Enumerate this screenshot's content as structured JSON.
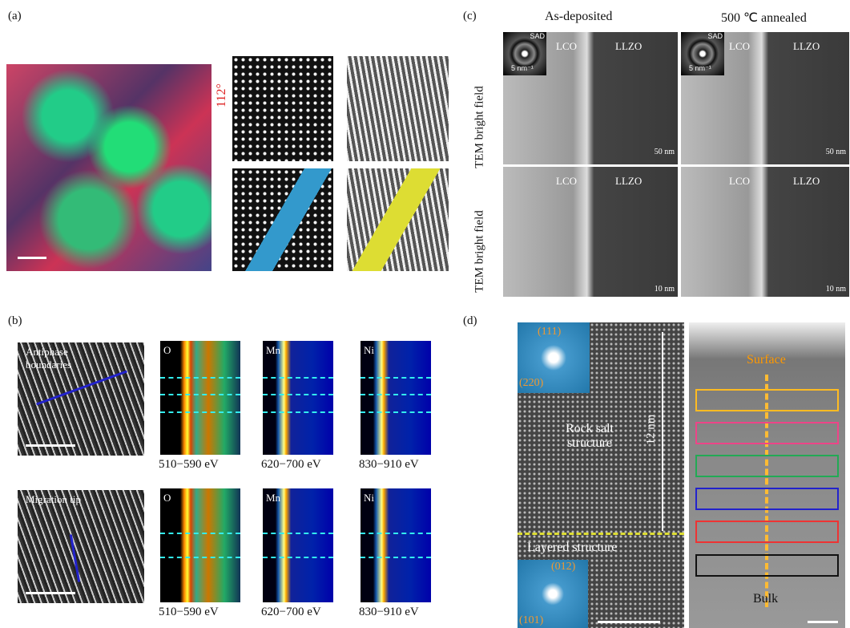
{
  "panels": {
    "a": {
      "label": "(a)",
      "angle": "112°"
    },
    "b": {
      "label": "(b)",
      "rows": [
        {
          "annotation": "Antiphase boundaries",
          "maps": [
            {
              "element": "O",
              "energy": "510−590 eV"
            },
            {
              "element": "Mn",
              "energy": "620−700 eV"
            },
            {
              "element": "Ni",
              "energy": "830−910 eV"
            }
          ]
        },
        {
          "annotation": "Migration tip",
          "maps": [
            {
              "element": "O",
              "energy": "510−590 eV"
            },
            {
              "element": "Mn",
              "energy": "620−700 eV"
            },
            {
              "element": "Ni",
              "energy": "830−910 eV"
            }
          ]
        }
      ]
    },
    "c": {
      "label": "(c)",
      "columns": [
        "As-deposited",
        "500 ℃ annealed"
      ],
      "row_labels": [
        "TEM bright field",
        "TEM bright field"
      ],
      "images": [
        [
          {
            "inset": "SAD",
            "inset_scale": "5 nm⁻¹",
            "left": "LCO",
            "right": "LLZO",
            "scale": "50 nm"
          },
          {
            "inset": "SAD",
            "inset_scale": "5 nm⁻¹",
            "left": "LCO",
            "right": "LLZO",
            "scale": "50 nm"
          }
        ],
        [
          {
            "left": "LCO",
            "right": "LLZO",
            "scale": "10 nm"
          },
          {
            "left": "LCO",
            "right": "LLZO",
            "scale": "10 nm"
          }
        ]
      ]
    },
    "d": {
      "label": "(d)",
      "fft_top": [
        "(111)",
        "(220)"
      ],
      "thickness": "12 nm",
      "upper_region": "Rock salt structure",
      "lower_region": "Layered structure",
      "fft_bottom": [
        "(012)",
        "(101)"
      ],
      "surface": "Surface",
      "bulk": "Bulk"
    }
  }
}
